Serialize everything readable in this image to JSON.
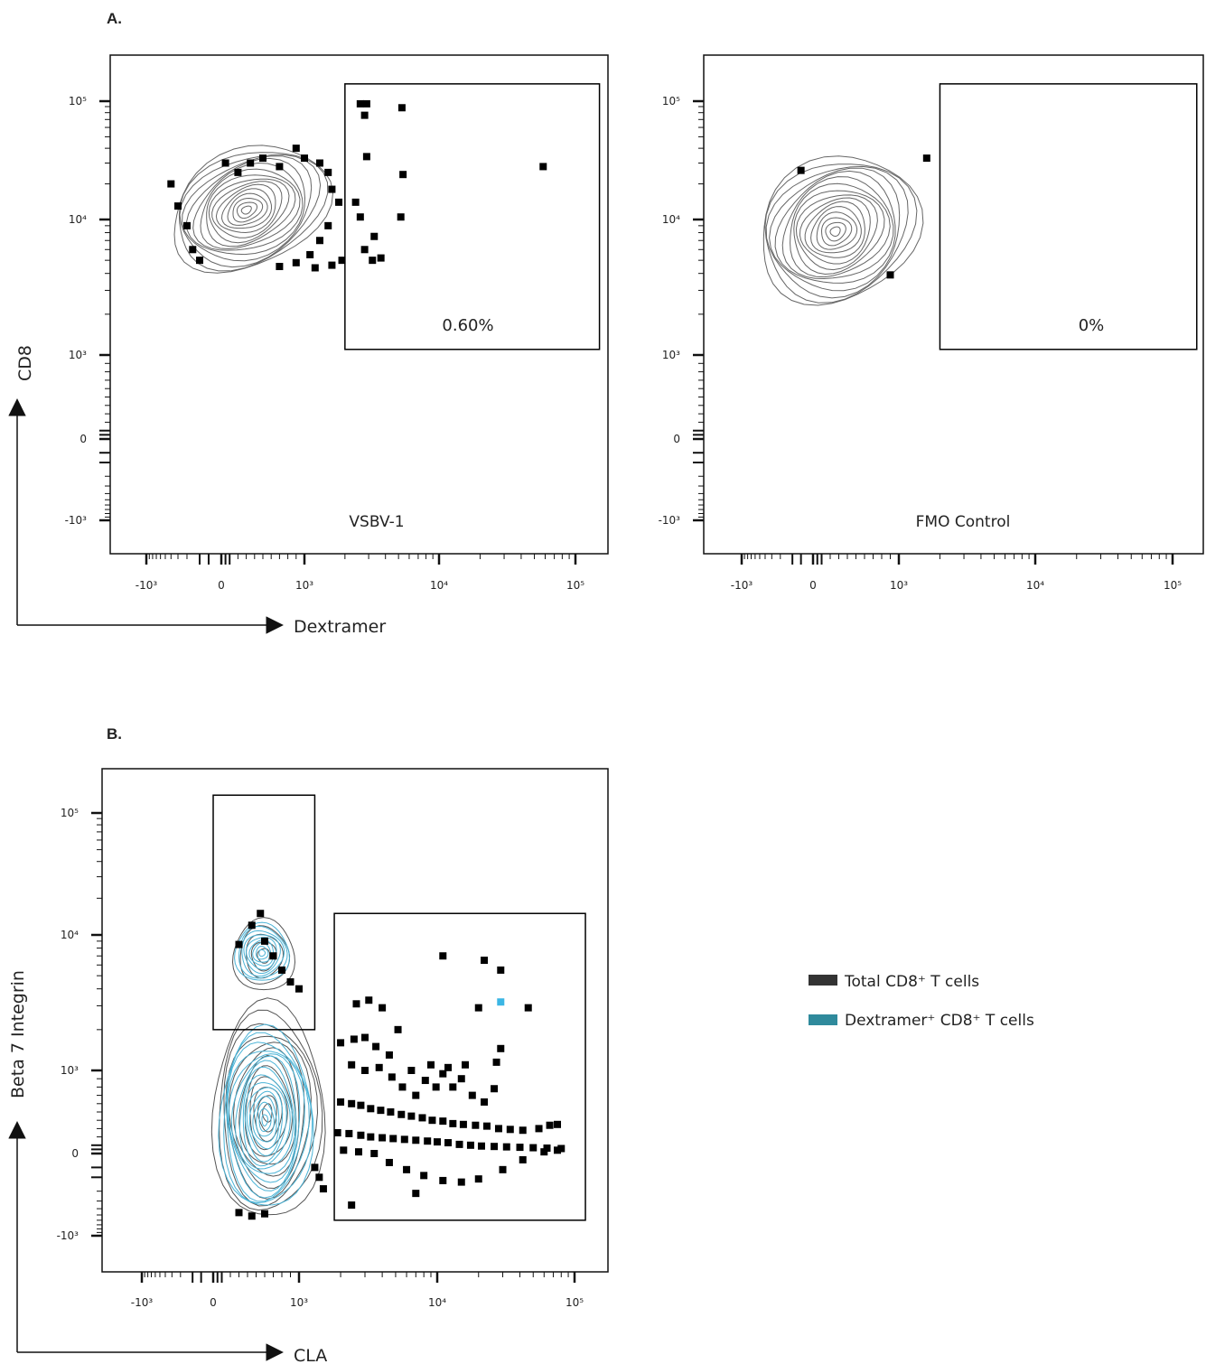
{
  "chart_data": [
    {
      "panel": "A.",
      "type": "scatter",
      "subtype": "flow cytometry contour plot with outliers",
      "plot_label": "VSBV-1",
      "xlabel": "Dextramer",
      "ylabel": "CD8",
      "x_scale": "biexponential",
      "y_scale": "biexponential",
      "x_tick_labels": [
        "-10³",
        "0",
        "10³",
        "10⁴",
        "10⁵"
      ],
      "y_tick_labels": [
        "10⁵",
        "10⁴",
        "10³",
        "0",
        "-10³"
      ],
      "gate": {
        "x_range": [
          2000,
          150000
        ],
        "y_range": [
          1100,
          140000
        ],
        "label": "0.60%"
      },
      "population_center": {
        "x": 300,
        "y": 11000
      },
      "outside_gate_points": [
        [
          -400,
          20000
        ],
        [
          -300,
          13000
        ],
        [
          -200,
          9000
        ],
        [
          -150,
          6000
        ],
        [
          -100,
          5000
        ],
        [
          50,
          30000
        ],
        [
          200,
          25000
        ],
        [
          350,
          30000
        ],
        [
          500,
          33000
        ],
        [
          700,
          28000
        ],
        [
          900,
          40000
        ],
        [
          1000,
          33000
        ],
        [
          1300,
          30000
        ],
        [
          1500,
          25000
        ],
        [
          1600,
          18000
        ],
        [
          1800,
          14000
        ],
        [
          1500,
          9000
        ],
        [
          1300,
          7000
        ],
        [
          1100,
          5500
        ],
        [
          900,
          4800
        ],
        [
          700,
          4500
        ],
        [
          1200,
          4400
        ],
        [
          1600,
          4600
        ],
        [
          1900,
          5000
        ]
      ],
      "inside_gate_points": [
        [
          2600,
          95000
        ],
        [
          2900,
          95000
        ],
        [
          2800,
          76000
        ],
        [
          5300,
          88000
        ],
        [
          2900,
          34000
        ],
        [
          5400,
          24000
        ],
        [
          2400,
          14000
        ],
        [
          2600,
          10500
        ],
        [
          5200,
          10500
        ],
        [
          3300,
          7500
        ],
        [
          2800,
          6000
        ],
        [
          3200,
          5000
        ],
        [
          3700,
          5200
        ],
        [
          58000,
          28000
        ]
      ],
      "colors": {
        "contour": "#666666",
        "points": "#000000",
        "gate": "#000000"
      }
    },
    {
      "panel": "",
      "type": "scatter",
      "subtype": "flow cytometry contour plot with outliers",
      "plot_label": "FMO Control",
      "xlabel": "Dextramer",
      "ylabel": "CD8",
      "x_scale": "biexponential",
      "y_scale": "biexponential",
      "x_tick_labels": [
        "-10³",
        "0",
        "10³",
        "10⁴",
        "10⁵"
      ],
      "y_tick_labels": [
        "10⁵",
        "10⁴",
        "10³",
        "0",
        "-10³"
      ],
      "gate": {
        "x_range": [
          2000,
          150000
        ],
        "y_range": [
          1100,
          140000
        ],
        "label": "0%"
      },
      "population_center": {
        "x": 300,
        "y": 9500
      },
      "outside_gate_points": [
        [
          -50,
          26000
        ],
        [
          1600,
          33000
        ],
        [
          900,
          3900
        ]
      ],
      "inside_gate_points": [],
      "colors": {
        "contour": "#666666",
        "points": "#000000",
        "gate": "#000000"
      }
    },
    {
      "panel": "B.",
      "type": "scatter",
      "subtype": "flow cytometry overlay contour plot",
      "plot_label": "",
      "xlabel": "CLA",
      "ylabel": "Beta 7 Integrin",
      "x_scale": "biexponential",
      "y_scale": "biexponential",
      "x_tick_labels": [
        "-10³",
        "0",
        "10³",
        "10⁴",
        "10⁵"
      ],
      "y_tick_labels": [
        "10⁵",
        "10⁴",
        "10³",
        "0",
        "-10³"
      ],
      "gates": [
        {
          "x_range": [
            0,
            1300
          ],
          "y_range": [
            2000,
            140000
          ]
        },
        {
          "x_range": [
            1800,
            120000
          ],
          "y_range": [
            -600,
            15000
          ]
        }
      ],
      "legend": {
        "position": "right",
        "items": [
          {
            "label": "Total CD8⁺ T cells",
            "color": "#333333"
          },
          {
            "label": "Dextramer⁺ CD8⁺ T cells",
            "color": "#2f8a9c"
          }
        ]
      },
      "total_points": [
        [
          550,
          15000
        ],
        [
          450,
          12000
        ],
        [
          300,
          8500
        ],
        [
          600,
          9000
        ],
        [
          700,
          7000
        ],
        [
          800,
          5500
        ],
        [
          900,
          4500
        ],
        [
          1000,
          4000
        ],
        [
          2600,
          3100
        ],
        [
          3200,
          3300
        ],
        [
          4000,
          2900
        ],
        [
          2000,
          1600
        ],
        [
          2500,
          1700
        ],
        [
          3000,
          1750
        ],
        [
          3600,
          1500
        ],
        [
          4500,
          1300
        ],
        [
          5200,
          2000
        ],
        [
          2400,
          1100
        ],
        [
          3000,
          1000
        ],
        [
          3800,
          1050
        ],
        [
          4700,
          920
        ],
        [
          5600,
          800
        ],
        [
          6500,
          1000
        ],
        [
          7000,
          700
        ],
        [
          8200,
          880
        ],
        [
          9800,
          800
        ],
        [
          11000,
          960
        ],
        [
          13000,
          800
        ],
        [
          15000,
          900
        ],
        [
          18000,
          700
        ],
        [
          22000,
          620
        ],
        [
          26000,
          780
        ],
        [
          2000,
          620
        ],
        [
          2400,
          600
        ],
        [
          2800,
          580
        ],
        [
          3300,
          540
        ],
        [
          3900,
          520
        ],
        [
          4600,
          500
        ],
        [
          5500,
          470
        ],
        [
          6500,
          450
        ],
        [
          7800,
          430
        ],
        [
          9200,
          400
        ],
        [
          11000,
          390
        ],
        [
          13000,
          360
        ],
        [
          15500,
          350
        ],
        [
          19000,
          340
        ],
        [
          23000,
          330
        ],
        [
          28000,
          300
        ],
        [
          34000,
          290
        ],
        [
          42000,
          280
        ],
        [
          55000,
          300
        ],
        [
          66000,
          340
        ],
        [
          75000,
          350
        ],
        [
          1900,
          250
        ],
        [
          2300,
          240
        ],
        [
          2800,
          220
        ],
        [
          3300,
          200
        ],
        [
          4000,
          190
        ],
        [
          4800,
          180
        ],
        [
          5800,
          170
        ],
        [
          7000,
          160
        ],
        [
          8500,
          150
        ],
        [
          10000,
          140
        ],
        [
          12000,
          130
        ],
        [
          14500,
          110
        ],
        [
          17500,
          100
        ],
        [
          21000,
          90
        ],
        [
          26000,
          85
        ],
        [
          32000,
          80
        ],
        [
          40000,
          75
        ],
        [
          50000,
          70
        ],
        [
          63000,
          65
        ],
        [
          80000,
          60
        ],
        [
          2100,
          40
        ],
        [
          2700,
          20
        ],
        [
          3500,
          0
        ],
        [
          4500,
          -30
        ],
        [
          6000,
          -60
        ],
        [
          8000,
          -90
        ],
        [
          11000,
          -120
        ],
        [
          15000,
          -130
        ],
        [
          20000,
          -110
        ],
        [
          30000,
          -60
        ],
        [
          42000,
          -20
        ],
        [
          60000,
          20
        ],
        [
          75000,
          40
        ],
        [
          2400,
          -350
        ],
        [
          7000,
          -220
        ],
        [
          11000,
          7000
        ],
        [
          22000,
          6500
        ],
        [
          29000,
          5500
        ],
        [
          20000,
          2900
        ],
        [
          46000,
          2900
        ],
        [
          29000,
          1450
        ],
        [
          16000,
          1100
        ],
        [
          27000,
          1150
        ],
        [
          12000,
          1050
        ],
        [
          9000,
          1100
        ],
        [
          1500,
          -180
        ],
        [
          1400,
          -100
        ],
        [
          1300,
          -50
        ],
        [
          300,
          -460
        ],
        [
          450,
          -520
        ],
        [
          600,
          -480
        ]
      ],
      "dextramer_points": [
        [
          29000,
          3200
        ]
      ],
      "colors": {
        "total_contour": "#555555",
        "dextramer_contour": "#4ab3d6",
        "points": "#000000",
        "dextramer_point": "#3bb6e4",
        "gate": "#000000"
      }
    }
  ]
}
